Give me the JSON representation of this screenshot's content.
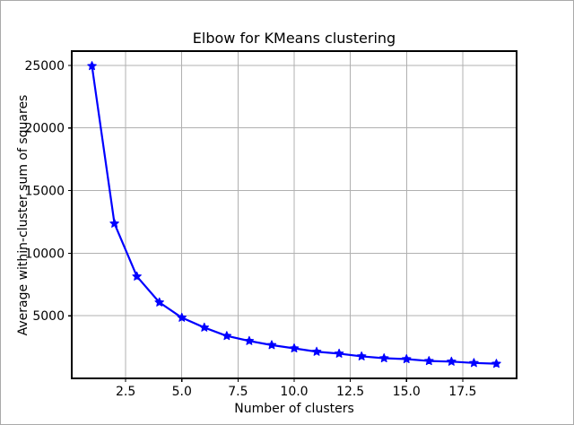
{
  "figure": {
    "background": "#ffffff",
    "frame_border_color": "#a9a9a9"
  },
  "chart_data": {
    "type": "line",
    "title": "Elbow for KMeans clustering",
    "xlabel": "Number of clusters",
    "ylabel": "Average within-cluster sum of squares",
    "x": [
      1,
      2,
      3,
      4,
      5,
      6,
      7,
      8,
      9,
      10,
      11,
      12,
      13,
      14,
      15,
      16,
      17,
      18,
      19
    ],
    "values": [
      24950,
      12370,
      8140,
      6070,
      4850,
      4060,
      3390,
      2990,
      2660,
      2400,
      2130,
      1980,
      1760,
      1610,
      1540,
      1390,
      1340,
      1230,
      1170
    ],
    "xlim": [
      0.1,
      19.9
    ],
    "ylim": [
      0,
      26140
    ],
    "xticks": [
      2.5,
      5.0,
      7.5,
      10.0,
      12.5,
      15.0,
      17.5
    ],
    "xtick_labels": [
      "2.5",
      "5.0",
      "7.5",
      "10.0",
      "12.5",
      "15.0",
      "17.5"
    ],
    "yticks": [
      5000,
      10000,
      15000,
      20000,
      25000
    ],
    "ytick_labels": [
      "5000",
      "10000",
      "15000",
      "20000",
      "25000"
    ],
    "grid": true,
    "legend": "none",
    "style": {
      "line_color": "#0000ff",
      "marker": "star",
      "marker_color": "#0000ff",
      "grid_color": "#b0b0b0",
      "spine_color": "#000000",
      "tick_color": "#000000",
      "text_color": "#000000"
    }
  }
}
